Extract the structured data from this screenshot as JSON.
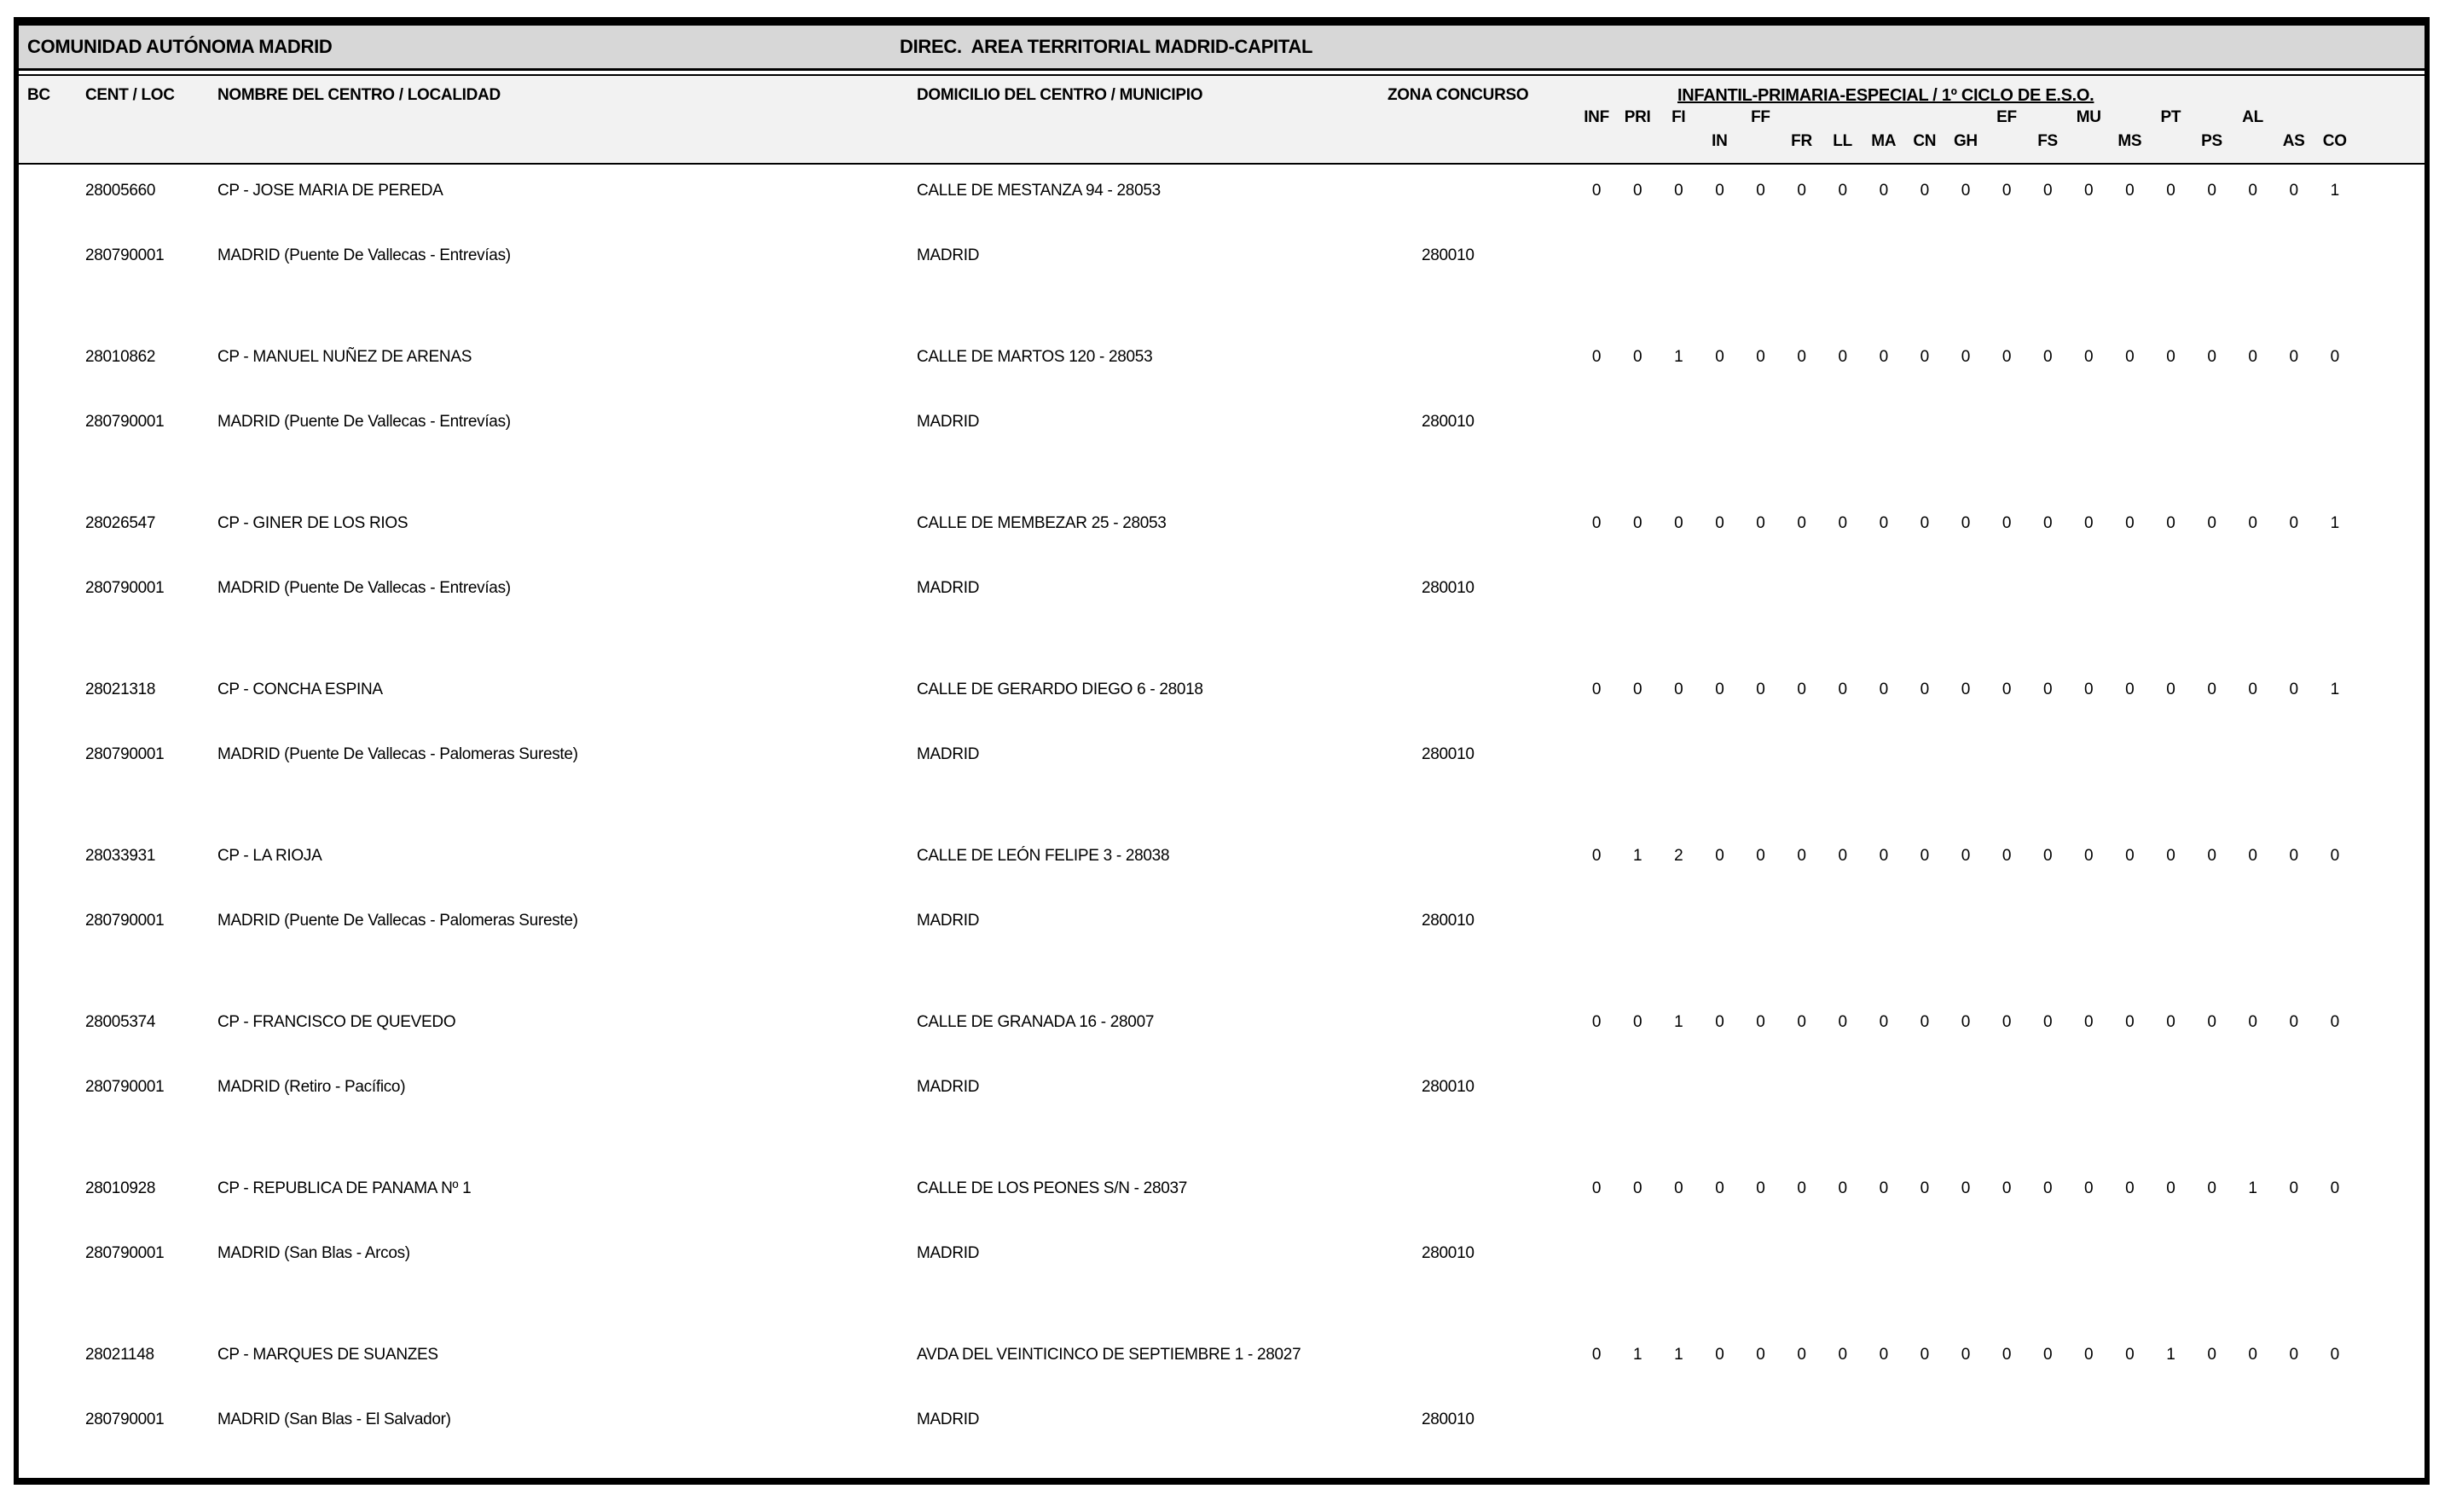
{
  "page": {
    "region_title": "COMUNIDAD AUTÓNOMA MADRID",
    "direction_title": "DIREC.  AREA TERRITORIAL MADRID-CAPITAL"
  },
  "colors": {
    "title_band": "#d7d7d7",
    "header_band": "#f2f2f2",
    "border": "#000000"
  },
  "table": {
    "headers": {
      "bc": "BC",
      "cent_loc": "CENT / LOC",
      "nombre": "NOMBRE DEL CENTRO / LOCALIDAD",
      "domicilio": "DOMICILIO DEL CENTRO / MUNICIPIO",
      "zona": "ZONA CONCURSO",
      "group_title": "INFANTIL-PRIMARIA-ESPECIAL / 1º CICLO DE E.S.O.",
      "subject_columns": [
        {
          "label": "INF",
          "row": "top"
        },
        {
          "label": "PRI",
          "row": "top"
        },
        {
          "label": "FI",
          "row": "top"
        },
        {
          "label": "IN",
          "row": "bottom"
        },
        {
          "label": "FF",
          "row": "top"
        },
        {
          "label": "FR",
          "row": "bottom"
        },
        {
          "label": "LL",
          "row": "bottom"
        },
        {
          "label": "MA",
          "row": "bottom"
        },
        {
          "label": "CN",
          "row": "bottom"
        },
        {
          "label": "GH",
          "row": "bottom"
        },
        {
          "label": "EF",
          "row": "top"
        },
        {
          "label": "FS",
          "row": "bottom"
        },
        {
          "label": "MU",
          "row": "top"
        },
        {
          "label": "MS",
          "row": "bottom"
        },
        {
          "label": "PT",
          "row": "top"
        },
        {
          "label": "PS",
          "row": "bottom"
        },
        {
          "label": "AL",
          "row": "top"
        },
        {
          "label": "AS",
          "row": "bottom"
        },
        {
          "label": "CO",
          "row": "bottom"
        }
      ]
    },
    "rows": [
      {
        "cent_code": "28005660",
        "nombre": "CP - JOSE MARIA DE PEREDA",
        "domicilio": "CALLE DE MESTANZA 94 - 28053",
        "loc_code": "280790001",
        "localidad": "MADRID (Puente De Vallecas - Entrevías)",
        "municipio": "MADRID",
        "zona": "280010",
        "values": [
          0,
          0,
          0,
          0,
          0,
          0,
          0,
          0,
          0,
          0,
          0,
          0,
          0,
          0,
          0,
          0,
          0,
          0,
          1
        ]
      },
      {
        "cent_code": "28010862",
        "nombre": "CP - MANUEL NUÑEZ DE ARENAS",
        "domicilio": "CALLE DE MARTOS 120 - 28053",
        "loc_code": "280790001",
        "localidad": "MADRID (Puente De Vallecas - Entrevías)",
        "municipio": "MADRID",
        "zona": "280010",
        "values": [
          0,
          0,
          1,
          0,
          0,
          0,
          0,
          0,
          0,
          0,
          0,
          0,
          0,
          0,
          0,
          0,
          0,
          0,
          0
        ]
      },
      {
        "cent_code": "28026547",
        "nombre": "CP - GINER DE LOS RIOS",
        "domicilio": "CALLE DE MEMBEZAR 25 - 28053",
        "loc_code": "280790001",
        "localidad": "MADRID (Puente De Vallecas - Entrevías)",
        "municipio": "MADRID",
        "zona": "280010",
        "values": [
          0,
          0,
          0,
          0,
          0,
          0,
          0,
          0,
          0,
          0,
          0,
          0,
          0,
          0,
          0,
          0,
          0,
          0,
          1
        ]
      },
      {
        "cent_code": "28021318",
        "nombre": "CP - CONCHA ESPINA",
        "domicilio": "CALLE DE GERARDO DIEGO 6 - 28018",
        "loc_code": "280790001",
        "localidad": "MADRID (Puente De Vallecas - Palomeras Sureste)",
        "municipio": "MADRID",
        "zona": "280010",
        "values": [
          0,
          0,
          0,
          0,
          0,
          0,
          0,
          0,
          0,
          0,
          0,
          0,
          0,
          0,
          0,
          0,
          0,
          0,
          1
        ]
      },
      {
        "cent_code": "28033931",
        "nombre": "CP - LA RIOJA",
        "domicilio": "CALLE DE LEÓN FELIPE 3 - 28038",
        "loc_code": "280790001",
        "localidad": "MADRID (Puente De Vallecas - Palomeras Sureste)",
        "municipio": "MADRID",
        "zona": "280010",
        "values": [
          0,
          1,
          2,
          0,
          0,
          0,
          0,
          0,
          0,
          0,
          0,
          0,
          0,
          0,
          0,
          0,
          0,
          0,
          0
        ]
      },
      {
        "cent_code": "28005374",
        "nombre": "CP - FRANCISCO DE QUEVEDO",
        "domicilio": "CALLE DE GRANADA 16 - 28007",
        "loc_code": "280790001",
        "localidad": "MADRID (Retiro - Pacífico)",
        "municipio": "MADRID",
        "zona": "280010",
        "values": [
          0,
          0,
          1,
          0,
          0,
          0,
          0,
          0,
          0,
          0,
          0,
          0,
          0,
          0,
          0,
          0,
          0,
          0,
          0
        ]
      },
      {
        "cent_code": "28010928",
        "nombre": "CP - REPUBLICA DE PANAMA Nº 1",
        "domicilio": "CALLE DE LOS PEONES S/N - 28037",
        "loc_code": "280790001",
        "localidad": "MADRID (San Blas - Arcos)",
        "municipio": "MADRID",
        "zona": "280010",
        "values": [
          0,
          0,
          0,
          0,
          0,
          0,
          0,
          0,
          0,
          0,
          0,
          0,
          0,
          0,
          0,
          0,
          1,
          0,
          0
        ]
      },
      {
        "cent_code": "28021148",
        "nombre": "CP - MARQUES DE SUANZES",
        "domicilio": "AVDA DEL VEINTICINCO DE SEPTIEMBRE 1 - 28027",
        "loc_code": "280790001",
        "localidad": "MADRID (San Blas - El Salvador)",
        "municipio": "MADRID",
        "zona": "280010",
        "values": [
          0,
          1,
          1,
          0,
          0,
          0,
          0,
          0,
          0,
          0,
          0,
          0,
          0,
          0,
          1,
          0,
          0,
          0,
          0
        ]
      }
    ]
  }
}
